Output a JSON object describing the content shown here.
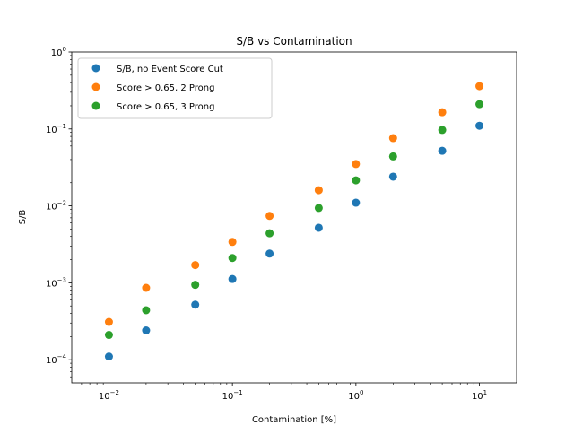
{
  "chart_data": {
    "type": "scatter",
    "title": "S/B vs Contamination",
    "xlabel": "Contamination [%]",
    "ylabel": "S/B",
    "xscale": "log",
    "yscale": "log",
    "xlim": [
      0.005,
      20
    ],
    "ylim": [
      5e-05,
      1
    ],
    "x_ticks": [
      {
        "base": "10",
        "exp": "−2",
        "value": 0.01
      },
      {
        "base": "10",
        "exp": "−1",
        "value": 0.1
      },
      {
        "base": "10",
        "exp": "0",
        "value": 1
      },
      {
        "base": "10",
        "exp": "1",
        "value": 10
      }
    ],
    "y_ticks": [
      {
        "base": "10",
        "exp": "−4",
        "value": 0.0001
      },
      {
        "base": "10",
        "exp": "−3",
        "value": 0.001
      },
      {
        "base": "10",
        "exp": "−2",
        "value": 0.01
      },
      {
        "base": "10",
        "exp": "−1",
        "value": 0.1
      },
      {
        "base": "10",
        "exp": "0",
        "value": 1
      }
    ],
    "grid": false,
    "legend_position": "top-left",
    "x": [
      0.01,
      0.02,
      0.05,
      0.1,
      0.2,
      0.5,
      1,
      2,
      5,
      10
    ],
    "series": [
      {
        "name": "S/B, no Event Score Cut",
        "color": "#1f77b4",
        "values": [
          0.00011,
          0.00024,
          0.00052,
          0.00112,
          0.0024,
          0.0052,
          0.011,
          0.024,
          0.052,
          0.11
        ]
      },
      {
        "name": "Score > 0.65, 2 Prong",
        "color": "#ff7f0e",
        "values": [
          0.00031,
          0.00086,
          0.0017,
          0.0034,
          0.0074,
          0.016,
          0.035,
          0.076,
          0.165,
          0.36
        ]
      },
      {
        "name": "Score > 0.65, 3 Prong",
        "color": "#2ca02c",
        "values": [
          0.00021,
          0.00044,
          0.00094,
          0.0021,
          0.0044,
          0.0094,
          0.0215,
          0.044,
          0.097,
          0.21
        ]
      }
    ]
  }
}
